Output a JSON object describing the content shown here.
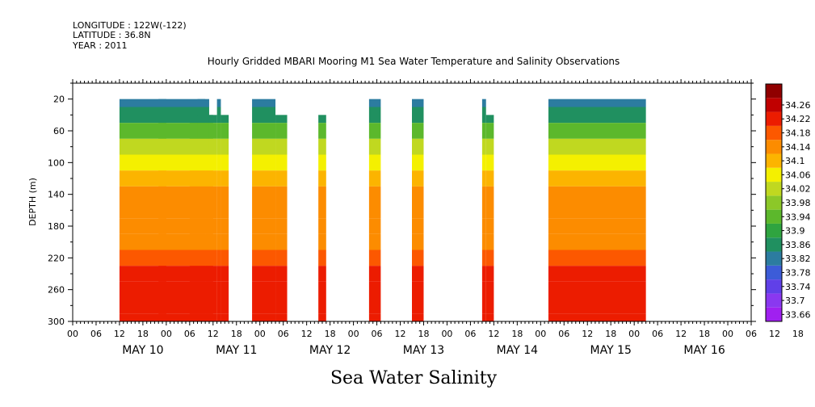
{
  "header": {
    "longitude": "LONGITUDE : 122W(-122)",
    "latitude": "LATITUDE : 36.8N",
    "year": "YEAR : 2011"
  },
  "title": "Hourly Gridded MBARI Mooring M1 Sea Water Temperature and Salinity Observations",
  "footer_title": "Sea Water Salinity",
  "chart_data": {
    "type": "heatmap",
    "title": "Hourly Gridded MBARI Mooring M1 Sea Water Temperature and Salinity Observations",
    "variable": "Sea Water Salinity",
    "ylabel": "DEPTH (m)",
    "yinverted": true,
    "ylim": [
      300,
      0
    ],
    "yticks": [
      20,
      60,
      100,
      140,
      180,
      220,
      260,
      300
    ],
    "xlim_hours": [
      -6,
      168
    ],
    "x_hour_labels": [
      "00",
      "06",
      "12",
      "18",
      "00",
      "06",
      "12",
      "18",
      "00",
      "06",
      "12",
      "18",
      "00",
      "06",
      "12",
      "18",
      "00",
      "06",
      "12",
      "18",
      "00",
      "06",
      "12",
      "18",
      "00",
      "06",
      "12",
      "18",
      "00",
      "06",
      "12",
      "18",
      "00",
      "06",
      "12",
      "18",
      "00",
      "06",
      "12",
      "18"
    ],
    "x_day_labels": [
      {
        "label": "MAY 10",
        "hour": 12
      },
      {
        "label": "MAY 11",
        "hour": 36
      },
      {
        "label": "MAY 12",
        "hour": 60
      },
      {
        "label": "MAY 13",
        "hour": 84
      },
      {
        "label": "MAY 14",
        "hour": 108
      },
      {
        "label": "MAY 15",
        "hour": 132
      },
      {
        "label": "MAY 16",
        "hour": 156
      }
    ],
    "colorbar": {
      "levels": [
        33.66,
        33.7,
        33.74,
        33.78,
        33.82,
        33.86,
        33.9,
        33.94,
        33.98,
        34.02,
        34.06,
        34.1,
        34.14,
        34.18,
        34.22,
        34.26
      ],
      "colors": [
        "#a020f0",
        "#8a38f0",
        "#6040e8",
        "#3c5cd8",
        "#2c7ca0",
        "#209060",
        "#2fa440",
        "#5cb82c",
        "#8cc828",
        "#c0d820",
        "#f4f000",
        "#fcb400",
        "#fc8c00",
        "#fc5800",
        "#ec1c00",
        "#c00000",
        "#900000"
      ]
    },
    "data_segments": [
      {
        "start_hour": 6,
        "end_hour": 28,
        "top_depth": 20
      },
      {
        "start_hour": 28,
        "end_hour": 30,
        "top_depth": 40
      },
      {
        "start_hour": 16,
        "end_hour": 18,
        "top_depth": 20
      },
      {
        "start_hour": 24,
        "end_hour": 26,
        "top_depth": 40
      },
      {
        "start_hour": 26,
        "end_hour": 29,
        "top_depth": 20
      },
      {
        "start_hour": 29,
        "end_hour": 31,
        "top_depth": 40
      },
      {
        "start_hour": 31,
        "end_hour": 32,
        "top_depth": 20
      },
      {
        "start_hour": 32,
        "end_hour": 34,
        "top_depth": 40
      },
      {
        "start_hour": 40,
        "end_hour": 46,
        "top_depth": 20
      },
      {
        "start_hour": 46,
        "end_hour": 49,
        "top_depth": 40
      },
      {
        "start_hour": 57,
        "end_hour": 59,
        "top_depth": 40
      },
      {
        "start_hour": 70,
        "end_hour": 73,
        "top_depth": 20
      },
      {
        "start_hour": 81,
        "end_hour": 84,
        "top_depth": 20
      },
      {
        "start_hour": 99,
        "end_hour": 100,
        "top_depth": 20
      },
      {
        "start_hour": 100,
        "end_hour": 102,
        "top_depth": 40
      },
      {
        "start_hour": 116,
        "end_hour": 141,
        "top_depth": 20
      }
    ],
    "depth_profile": [
      {
        "depth": 20,
        "salinity": 33.8
      },
      {
        "depth": 40,
        "salinity": 33.85
      },
      {
        "depth": 60,
        "salinity": 33.92
      },
      {
        "depth": 80,
        "salinity": 33.98
      },
      {
        "depth": 100,
        "salinity": 34.03
      },
      {
        "depth": 120,
        "salinity": 34.07
      },
      {
        "depth": 140,
        "salinity": 34.1
      },
      {
        "depth": 160,
        "salinity": 34.12
      },
      {
        "depth": 180,
        "salinity": 34.11
      },
      {
        "depth": 200,
        "salinity": 34.1
      },
      {
        "depth": 220,
        "salinity": 34.14
      },
      {
        "depth": 240,
        "salinity": 34.18
      },
      {
        "depth": 260,
        "salinity": 34.21
      },
      {
        "depth": 280,
        "salinity": 34.2
      },
      {
        "depth": 300,
        "salinity": 34.19
      }
    ]
  }
}
